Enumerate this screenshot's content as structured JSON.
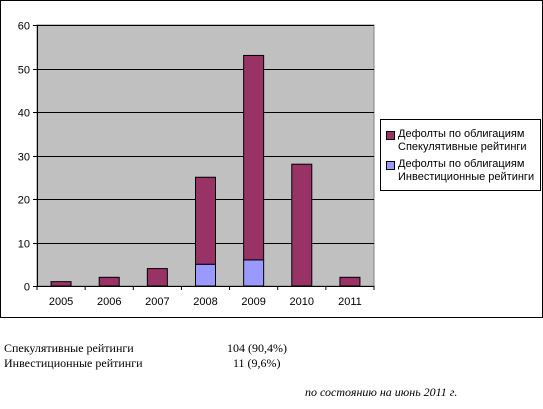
{
  "chart_data": {
    "type": "bar",
    "stacked": true,
    "categories": [
      "2005",
      "2006",
      "2007",
      "2008",
      "2009",
      "2010",
      "2011"
    ],
    "series": [
      {
        "name": "Дефолты по облигациям Инвестиционные рейтинги",
        "values": [
          0,
          0,
          0,
          5,
          6,
          0,
          0
        ],
        "color": "#9999ff"
      },
      {
        "name": "Дефолты по облигациям Спекулятивные рейтинги",
        "values": [
          1,
          2,
          4,
          20,
          47,
          28,
          2
        ],
        "color": "#993366"
      }
    ],
    "y_ticks": [
      "0",
      "10",
      "20",
      "30",
      "40",
      "50",
      "60"
    ],
    "ylim": [
      0,
      60
    ],
    "grid": true,
    "plot_background": "#c0c0c0",
    "legend_position": "right",
    "legend": [
      {
        "line1": "Дефолты по облигациям",
        "line2": "Спекулятивные рейтинги",
        "color": "#993366"
      },
      {
        "line1": "Дефолты по облигациям",
        "line2": "Инвестиционные рейтинги",
        "color": "#9999ff"
      }
    ]
  },
  "summary": [
    {
      "label": "Спекулятивные рейтинги",
      "value": "104 (90,4%)"
    },
    {
      "label": "Инвестиционные рейтинги",
      "value": "11 (9,6%)"
    }
  ],
  "footnote": "по состоянию на июнь 2011 г."
}
